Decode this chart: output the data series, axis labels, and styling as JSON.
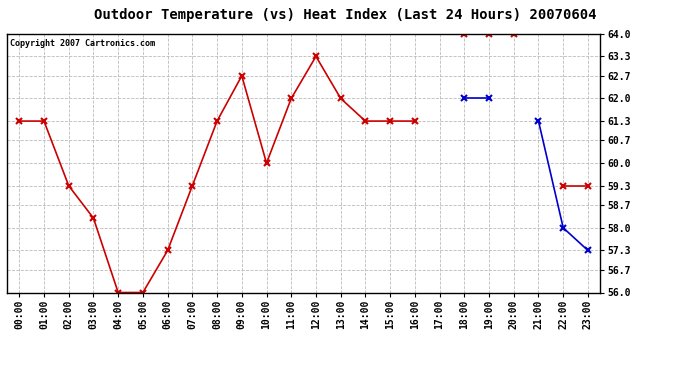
{
  "title": "Outdoor Temperature (vs) Heat Index (Last 24 Hours) 20070604",
  "copyright_text": "Copyright 2007 Cartronics.com",
  "x_labels": [
    "00:00",
    "01:00",
    "02:00",
    "03:00",
    "04:00",
    "05:00",
    "06:00",
    "07:00",
    "08:00",
    "09:00",
    "10:00",
    "11:00",
    "12:00",
    "13:00",
    "14:00",
    "15:00",
    "16:00",
    "17:00",
    "18:00",
    "19:00",
    "20:00",
    "21:00",
    "22:00",
    "23:00"
  ],
  "red_data": [
    61.3,
    61.3,
    59.3,
    58.3,
    56.0,
    56.0,
    57.3,
    59.3,
    61.3,
    62.7,
    60.0,
    62.0,
    63.3,
    62.0,
    61.3,
    61.3,
    61.3,
    null,
    64.0,
    64.0,
    64.0,
    null,
    59.3,
    59.3
  ],
  "blue_data": [
    null,
    null,
    null,
    null,
    null,
    null,
    null,
    null,
    null,
    null,
    null,
    null,
    null,
    null,
    null,
    null,
    null,
    null,
    62.0,
    62.0,
    null,
    61.3,
    58.0,
    57.3
  ],
  "ylim_min": 56.0,
  "ylim_max": 64.0,
  "yticks": [
    56.0,
    56.7,
    57.3,
    58.0,
    58.7,
    59.3,
    60.0,
    60.7,
    61.3,
    62.0,
    62.7,
    63.3,
    64.0
  ],
  "red_color": "#CC0000",
  "blue_color": "#0000CC",
  "grid_color": "#BBBBBB",
  "bg_color": "#FFFFFF",
  "plot_bg_color": "#FFFFFF",
  "marker": "x",
  "marker_size": 5,
  "marker_edge_width": 1.5,
  "linewidth": 1.2,
  "title_fontsize": 10,
  "tick_fontsize": 7,
  "copyright_fontsize": 6
}
